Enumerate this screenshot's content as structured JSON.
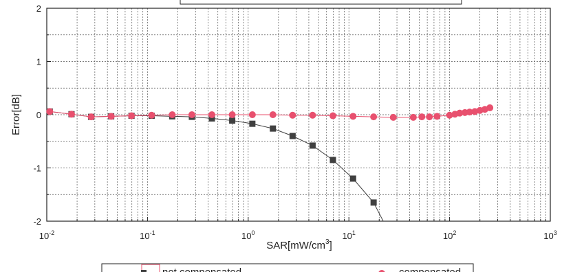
{
  "chart_data": {
    "type": "line",
    "xlabel": "SAR[mW/cm",
    "xlabel_sup": "3",
    "xlabel_end": "]",
    "ylabel": "Error[dB]",
    "x_scale": "log",
    "xlim": [
      0.01,
      1000
    ],
    "ylim": [
      -2,
      2
    ],
    "grid": true,
    "legend_position": "bottom",
    "y_ticks": [
      {
        "value": 2,
        "label": "2"
      },
      {
        "value": 1,
        "label": "1"
      },
      {
        "value": 0,
        "label": "0"
      },
      {
        "value": -1,
        "label": "-1"
      },
      {
        "value": -2,
        "label": "-2"
      }
    ],
    "x_ticks": [
      {
        "value": 0.01,
        "base": "10",
        "exp": "-2"
      },
      {
        "value": 0.1,
        "base": "10",
        "exp": "-1"
      },
      {
        "value": 1,
        "base": "10",
        "exp": "0"
      },
      {
        "value": 10,
        "base": "10",
        "exp": "1"
      },
      {
        "value": 100,
        "base": "10",
        "exp": "2"
      },
      {
        "value": 1000,
        "base": "10",
        "exp": "3"
      }
    ],
    "series": [
      {
        "name": "not compensated",
        "color": "#404040",
        "marker": "square",
        "x": [
          0.0107,
          0.0176,
          0.0276,
          0.0436,
          0.0694,
          0.11,
          0.176,
          0.276,
          0.436,
          0.694,
          1.1,
          1.76,
          2.76,
          4.36,
          6.94,
          11.0,
          17.6
        ],
        "y": [
          0.06,
          0.01,
          -0.04,
          -0.03,
          -0.02,
          -0.02,
          -0.03,
          -0.04,
          -0.07,
          -0.11,
          -0.17,
          -0.26,
          -0.4,
          -0.58,
          -0.85,
          -1.2,
          -1.65
        ]
      },
      {
        "name": "compensated",
        "color": "#e8506e",
        "marker": "circle",
        "x": [
          0.0107,
          0.0176,
          0.0276,
          0.0436,
          0.0694,
          0.11,
          0.176,
          0.276,
          0.436,
          0.694,
          1.1,
          1.76,
          2.76,
          4.36,
          6.94,
          11.0,
          17.6,
          27.6,
          43.6,
          53.0,
          63.0,
          75.0,
          100,
          113,
          126,
          142,
          158,
          178,
          200,
          224,
          251
        ],
        "y": [
          0.06,
          0.01,
          -0.04,
          -0.03,
          -0.02,
          -0.01,
          0.0,
          0.0,
          0.0,
          0.0,
          0.0,
          0.0,
          -0.01,
          -0.01,
          -0.02,
          -0.03,
          -0.04,
          -0.05,
          -0.05,
          -0.04,
          -0.04,
          -0.03,
          -0.01,
          0.01,
          0.03,
          0.04,
          0.05,
          0.06,
          0.08,
          0.1,
          0.13
        ]
      }
    ]
  }
}
